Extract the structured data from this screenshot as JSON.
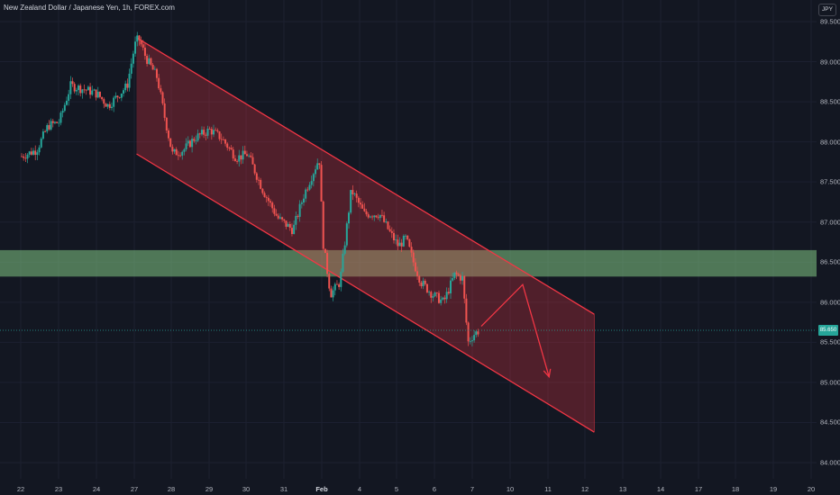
{
  "header": {
    "title": "New Zealand Dollar / Japanese Yen, 1h, FOREX.com"
  },
  "currency_button": "JPY",
  "last_price_label": "85.650",
  "colors": {
    "background": "#131722",
    "up": "#26a69a",
    "down": "#ef5350",
    "channel_line": "#f23645",
    "channel_fill": "rgba(242,54,69,0.28)",
    "zone_fill": "rgba(129,199,132,0.55)",
    "arrow": "#f23645"
  },
  "chart_data": {
    "type": "candlestick",
    "symbol": "NZDJPY",
    "interval": "1h",
    "ylim": [
      83.95,
      89.7
    ],
    "y_ticks": [
      "89.500",
      "89.000",
      "88.500",
      "88.000",
      "87.500",
      "87.000",
      "86.500",
      "86.000",
      "85.500",
      "85.000",
      "84.500",
      "84.000"
    ],
    "y_tick_values": [
      89.5,
      89.0,
      88.5,
      88.0,
      87.5,
      87.0,
      86.5,
      86.0,
      85.5,
      85.0,
      84.5,
      84.0
    ],
    "x_ticks": [
      "22",
      "23",
      "24",
      "27",
      "28",
      "29",
      "30",
      "31",
      "Feb",
      "4",
      "5",
      "6",
      "7",
      "10",
      "11",
      "12",
      "13",
      "14",
      "17",
      "18",
      "19",
      "20"
    ],
    "x_tick_bold": "Feb",
    "price_path": [
      {
        "t": 0.0,
        "p": 87.82
      },
      {
        "t": 0.4,
        "p": 87.9
      },
      {
        "t": 0.7,
        "p": 88.2
      },
      {
        "t": 1.0,
        "p": 88.25
      },
      {
        "t": 1.3,
        "p": 88.7
      },
      {
        "t": 1.7,
        "p": 88.65
      },
      {
        "t": 2.0,
        "p": 88.6
      },
      {
        "t": 2.3,
        "p": 88.45
      },
      {
        "t": 2.8,
        "p": 88.7
      },
      {
        "t": 3.0,
        "p": 89.2
      },
      {
        "t": 3.1,
        "p": 89.3
      },
      {
        "t": 3.3,
        "p": 89.05
      },
      {
        "t": 3.6,
        "p": 88.8
      },
      {
        "t": 3.8,
        "p": 88.3
      },
      {
        "t": 4.0,
        "p": 87.85
      },
      {
        "t": 4.3,
        "p": 87.9
      },
      {
        "t": 4.6,
        "p": 88.05
      },
      {
        "t": 5.0,
        "p": 88.15
      },
      {
        "t": 5.3,
        "p": 88.05
      },
      {
        "t": 5.7,
        "p": 87.8
      },
      {
        "t": 6.0,
        "p": 87.85
      },
      {
        "t": 6.4,
        "p": 87.4
      },
      {
        "t": 6.8,
        "p": 87.05
      },
      {
        "t": 7.2,
        "p": 86.9
      },
      {
        "t": 7.5,
        "p": 87.35
      },
      {
        "t": 7.9,
        "p": 87.8
      },
      {
        "t": 8.0,
        "p": 86.75
      },
      {
        "t": 8.2,
        "p": 86.1
      },
      {
        "t": 8.45,
        "p": 86.25
      },
      {
        "t": 8.75,
        "p": 87.4
      },
      {
        "t": 9.1,
        "p": 87.1
      },
      {
        "t": 9.5,
        "p": 87.1
      },
      {
        "t": 9.8,
        "p": 86.85
      },
      {
        "t": 10.0,
        "p": 86.7
      },
      {
        "t": 10.2,
        "p": 86.8
      },
      {
        "t": 10.4,
        "p": 86.5
      },
      {
        "t": 10.6,
        "p": 86.25
      },
      {
        "t": 10.9,
        "p": 86.1
      },
      {
        "t": 11.2,
        "p": 86.0
      },
      {
        "t": 11.5,
        "p": 86.35
      },
      {
        "t": 11.7,
        "p": 86.3
      },
      {
        "t": 11.85,
        "p": 85.5
      },
      {
        "t": 12.0,
        "p": 85.6
      },
      {
        "t": 12.15,
        "p": 85.65
      }
    ],
    "channel": {
      "upper": {
        "start": {
          "t": 3.05,
          "p": 89.3
        },
        "end": {
          "t": 15.2,
          "p": 85.85
        }
      },
      "lower": {
        "start": {
          "t": 3.05,
          "p": 87.85
        },
        "end": {
          "t": 15.2,
          "p": 84.38
        }
      }
    },
    "resistance_zone": {
      "low": 86.32,
      "high": 86.65
    },
    "projection": [
      {
        "t": 12.2,
        "p": 85.7
      },
      {
        "t": 13.3,
        "p": 86.22
      },
      {
        "t": 14.0,
        "p": 85.07
      }
    ]
  }
}
